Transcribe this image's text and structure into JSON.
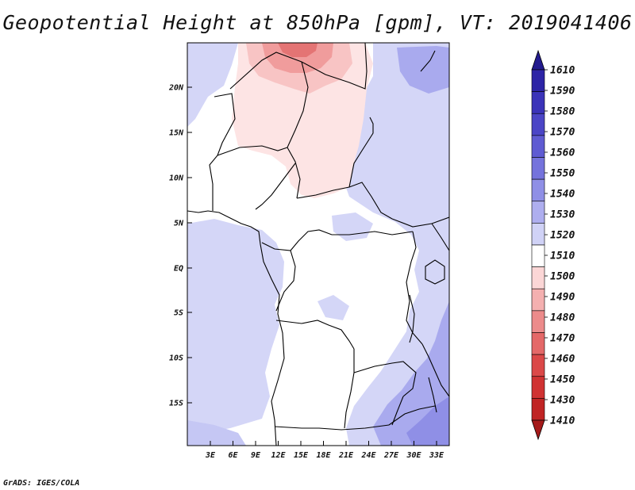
{
  "title": "Geopotential Height at 850hPa [gpm], VT: 2019041406",
  "footer": "GrADS: IGES/COLA",
  "map": {
    "lat_labels": [
      "20N",
      "15N",
      "10N",
      "5N",
      "EQ",
      "5S",
      "10S",
      "15S"
    ],
    "lon_labels": [
      "3E",
      "6E",
      "9E",
      "12E",
      "15E",
      "18E",
      "21E",
      "24E",
      "27E",
      "30E",
      "33E"
    ]
  },
  "colorbar": {
    "levels": [
      "1610",
      "1590",
      "1580",
      "1570",
      "1560",
      "1550",
      "1540",
      "1530",
      "1520",
      "1510",
      "1500",
      "1490",
      "1480",
      "1470",
      "1460",
      "1450",
      "1430",
      "1410"
    ],
    "colors": [
      "#231b8e",
      "#2d24a6",
      "#3b33b9",
      "#4b45c6",
      "#5f5bd2",
      "#7573dc",
      "#8f8fe6",
      "#aeaeef",
      "#d0d2f6",
      "#ffffff",
      "#fbd6d6",
      "#f4b0b0",
      "#ec8b8b",
      "#e46868",
      "#db4848",
      "#d03232",
      "#c02424",
      "#a51a1a"
    ]
  }
}
